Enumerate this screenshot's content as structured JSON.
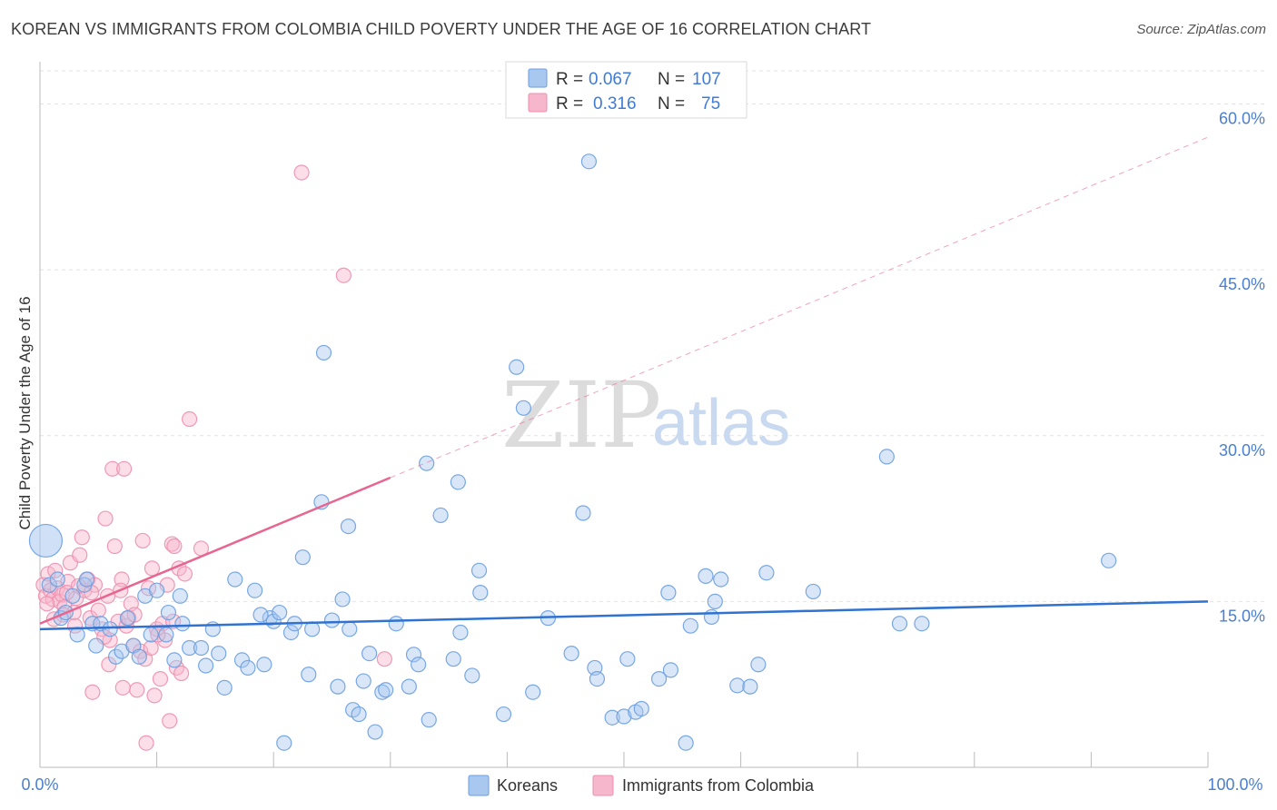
{
  "title": "KOREAN VS IMMIGRANTS FROM COLOMBIA CHILD POVERTY UNDER THE AGE OF 16 CORRELATION CHART",
  "source": "Source: ZipAtlas.com",
  "watermark": {
    "zip": "ZIP",
    "atlas": "atlas"
  },
  "colors": {
    "blue_fill": "#a9c8f0",
    "blue_stroke": "#6a9ee0",
    "blue_line": "#2f72d0",
    "pink_fill": "#f6b6cb",
    "pink_stroke": "#ee8fae",
    "pink_line": "#e8658f",
    "tick": "#4a7fd0",
    "grid": "#e2e2e2"
  },
  "legend": {
    "r_label": "R =",
    "n_label": "N =",
    "rows": [
      {
        "r": "0.067",
        "n": "107"
      },
      {
        "r": "0.316",
        "n": "75"
      }
    ]
  },
  "chart_data": {
    "type": "scatter",
    "xlabel": "",
    "ylabel": "Child Poverty Under the Age of 16",
    "xlim": [
      0,
      100
    ],
    "ylim": [
      0,
      63
    ],
    "x_tick_labels": [
      "0.0%",
      "100.0%"
    ],
    "y_ticks": [
      15,
      30,
      45,
      60
    ],
    "y_tick_labels": [
      "15.0%",
      "30.0%",
      "45.0%",
      "60.0%"
    ],
    "legend_position": "top-center",
    "series": [
      {
        "name": "Koreans",
        "r": 0.067,
        "n": 107,
        "trend": {
          "x": [
            0,
            100
          ],
          "y": [
            12.5,
            15.0
          ],
          "style": "solid"
        },
        "points": [
          {
            "x": 0.5,
            "y": 20.5,
            "big": true
          },
          {
            "x": 0.8,
            "y": 16.5
          },
          {
            "x": 1.5,
            "y": 17
          },
          {
            "x": 1.8,
            "y": 13.5
          },
          {
            "x": 2.2,
            "y": 14
          },
          {
            "x": 3.2,
            "y": 12
          },
          {
            "x": 3.8,
            "y": 16.5
          },
          {
            "x": 4.5,
            "y": 13
          },
          {
            "x": 4.8,
            "y": 11
          },
          {
            "x": 5.2,
            "y": 13
          },
          {
            "x": 6,
            "y": 12.5
          },
          {
            "x": 6.5,
            "y": 10
          },
          {
            "x": 7,
            "y": 10.5
          },
          {
            "x": 7.5,
            "y": 13.5
          },
          {
            "x": 8,
            "y": 11
          },
          {
            "x": 9,
            "y": 15.5
          },
          {
            "x": 9.5,
            "y": 12
          },
          {
            "x": 10,
            "y": 16
          },
          {
            "x": 10.8,
            "y": 12
          },
          {
            "x": 11.5,
            "y": 9.7
          },
          {
            "x": 12,
            "y": 15.5
          },
          {
            "x": 12.2,
            "y": 13
          },
          {
            "x": 12.8,
            "y": 10.8
          },
          {
            "x": 13.8,
            "y": 10.8
          },
          {
            "x": 14.2,
            "y": 9.2
          },
          {
            "x": 14.8,
            "y": 12.5
          },
          {
            "x": 15.3,
            "y": 10.3
          },
          {
            "x": 15.8,
            "y": 7.2
          },
          {
            "x": 16.7,
            "y": 17
          },
          {
            "x": 17.3,
            "y": 9.7
          },
          {
            "x": 17.8,
            "y": 9
          },
          {
            "x": 18.4,
            "y": 16
          },
          {
            "x": 19.2,
            "y": 9.3
          },
          {
            "x": 19.7,
            "y": 13.5
          },
          {
            "x": 20,
            "y": 13.2
          },
          {
            "x": 20.5,
            "y": 14
          },
          {
            "x": 20.9,
            "y": 2.2
          },
          {
            "x": 21.5,
            "y": 12.2
          },
          {
            "x": 21.8,
            "y": 13
          },
          {
            "x": 22.5,
            "y": 19
          },
          {
            "x": 23,
            "y": 8.4
          },
          {
            "x": 23.3,
            "y": 12.5
          },
          {
            "x": 24.1,
            "y": 24
          },
          {
            "x": 24.3,
            "y": 37.5
          },
          {
            "x": 25,
            "y": 13.3
          },
          {
            "x": 25.5,
            "y": 7.3
          },
          {
            "x": 25.9,
            "y": 15.2
          },
          {
            "x": 26.4,
            "y": 21.8
          },
          {
            "x": 26.8,
            "y": 5.2
          },
          {
            "x": 27.3,
            "y": 4.8
          },
          {
            "x": 27.7,
            "y": 7.8
          },
          {
            "x": 28.2,
            "y": 10.3
          },
          {
            "x": 28.7,
            "y": 3.2
          },
          {
            "x": 29.3,
            "y": 6.8
          },
          {
            "x": 29.6,
            "y": 7
          },
          {
            "x": 30.5,
            "y": 13
          },
          {
            "x": 31.6,
            "y": 7.3
          },
          {
            "x": 32,
            "y": 10.2
          },
          {
            "x": 32.4,
            "y": 9.3
          },
          {
            "x": 33.1,
            "y": 27.5
          },
          {
            "x": 33.3,
            "y": 4.3
          },
          {
            "x": 34.3,
            "y": 22.8
          },
          {
            "x": 35.4,
            "y": 9.8
          },
          {
            "x": 35.8,
            "y": 25.8
          },
          {
            "x": 36,
            "y": 12.2
          },
          {
            "x": 37,
            "y": 8.3
          },
          {
            "x": 37.6,
            "y": 17.8
          },
          {
            "x": 37.7,
            "y": 15.8
          },
          {
            "x": 39.7,
            "y": 4.8
          },
          {
            "x": 40.8,
            "y": 36.2
          },
          {
            "x": 41.4,
            "y": 32.5
          },
          {
            "x": 42.2,
            "y": 6.8
          },
          {
            "x": 43.5,
            "y": 13.5
          },
          {
            "x": 45.5,
            "y": 10.3
          },
          {
            "x": 46.5,
            "y": 23
          },
          {
            "x": 47.5,
            "y": 9
          },
          {
            "x": 47.7,
            "y": 8
          },
          {
            "x": 47,
            "y": 54.8
          },
          {
            "x": 49,
            "y": 4.5
          },
          {
            "x": 50,
            "y": 4.6
          },
          {
            "x": 50.3,
            "y": 9.8
          },
          {
            "x": 51,
            "y": 5
          },
          {
            "x": 51.5,
            "y": 5.3
          },
          {
            "x": 53,
            "y": 8
          },
          {
            "x": 53.8,
            "y": 15.8
          },
          {
            "x": 54,
            "y": 8.8
          },
          {
            "x": 55.3,
            "y": 2.2
          },
          {
            "x": 55.7,
            "y": 12.8
          },
          {
            "x": 57,
            "y": 17.3
          },
          {
            "x": 57.5,
            "y": 13.6
          },
          {
            "x": 57.8,
            "y": 15
          },
          {
            "x": 58.3,
            "y": 17
          },
          {
            "x": 59.7,
            "y": 7.4
          },
          {
            "x": 60.8,
            "y": 7.3
          },
          {
            "x": 61.5,
            "y": 9.3
          },
          {
            "x": 62.2,
            "y": 17.6
          },
          {
            "x": 66.2,
            "y": 15.9
          },
          {
            "x": 72.5,
            "y": 28.1
          },
          {
            "x": 73.6,
            "y": 13
          },
          {
            "x": 75.5,
            "y": 13
          },
          {
            "x": 91.5,
            "y": 18.7
          },
          {
            "x": 2.8,
            "y": 15.5
          },
          {
            "x": 4,
            "y": 17
          },
          {
            "x": 8.5,
            "y": 10
          },
          {
            "x": 11,
            "y": 14
          },
          {
            "x": 18.9,
            "y": 13.8
          },
          {
            "x": 26.5,
            "y": 12.5
          }
        ]
      },
      {
        "name": "Immigrants from Colombia",
        "r": 0.316,
        "n": 75,
        "trend": {
          "x": [
            0,
            30
          ],
          "y": [
            13.0,
            26.2
          ],
          "style": "solid",
          "dashed_extension": {
            "x": [
              30,
              100
            ],
            "y": [
              26.2,
              57.0
            ]
          }
        },
        "points": [
          {
            "x": 0.3,
            "y": 16.5
          },
          {
            "x": 0.5,
            "y": 15.5
          },
          {
            "x": 0.7,
            "y": 17.5
          },
          {
            "x": 0.9,
            "y": 16
          },
          {
            "x": 1.1,
            "y": 15.2
          },
          {
            "x": 1.3,
            "y": 17.8
          },
          {
            "x": 1.5,
            "y": 16.2
          },
          {
            "x": 1.7,
            "y": 15
          },
          {
            "x": 1.9,
            "y": 15.6
          },
          {
            "x": 2.1,
            "y": 14.5
          },
          {
            "x": 2.4,
            "y": 16.8
          },
          {
            "x": 2.6,
            "y": 18.5
          },
          {
            "x": 2.9,
            "y": 14
          },
          {
            "x": 3.1,
            "y": 15.3
          },
          {
            "x": 3.4,
            "y": 19.2
          },
          {
            "x": 3.6,
            "y": 20.8
          },
          {
            "x": 3.8,
            "y": 16
          },
          {
            "x": 4.1,
            "y": 17
          },
          {
            "x": 4.3,
            "y": 13.5
          },
          {
            "x": 4.5,
            "y": 6.8
          },
          {
            "x": 4.7,
            "y": 16.5
          },
          {
            "x": 5,
            "y": 14.2
          },
          {
            "x": 5.3,
            "y": 12.5
          },
          {
            "x": 5.6,
            "y": 22.5
          },
          {
            "x": 5.8,
            "y": 15.5
          },
          {
            "x": 6,
            "y": 11.5
          },
          {
            "x": 6.2,
            "y": 27
          },
          {
            "x": 6.4,
            "y": 20
          },
          {
            "x": 6.7,
            "y": 13.2
          },
          {
            "x": 7,
            "y": 17
          },
          {
            "x": 7.2,
            "y": 27
          },
          {
            "x": 7.4,
            "y": 12.8
          },
          {
            "x": 7.6,
            "y": 13.5
          },
          {
            "x": 7.8,
            "y": 14.8
          },
          {
            "x": 8,
            "y": 11
          },
          {
            "x": 8.3,
            "y": 7
          },
          {
            "x": 8.6,
            "y": 10.5
          },
          {
            "x": 8.8,
            "y": 20.5
          },
          {
            "x": 9,
            "y": 9.8
          },
          {
            "x": 9.1,
            "y": 2.2
          },
          {
            "x": 9.3,
            "y": 16.2
          },
          {
            "x": 9.6,
            "y": 18
          },
          {
            "x": 9.8,
            "y": 6.5
          },
          {
            "x": 10,
            "y": 12.5
          },
          {
            "x": 10.3,
            "y": 8
          },
          {
            "x": 10.5,
            "y": 13
          },
          {
            "x": 10.7,
            "y": 11.5
          },
          {
            "x": 10.9,
            "y": 16.5
          },
          {
            "x": 11.1,
            "y": 4.2
          },
          {
            "x": 11.3,
            "y": 20.2
          },
          {
            "x": 11.5,
            "y": 20
          },
          {
            "x": 11.7,
            "y": 9
          },
          {
            "x": 11.9,
            "y": 18
          },
          {
            "x": 12.1,
            "y": 8.5
          },
          {
            "x": 12.8,
            "y": 31.5
          },
          {
            "x": 13.8,
            "y": 19.8
          },
          {
            "x": 22.4,
            "y": 53.8
          },
          {
            "x": 26,
            "y": 44.5
          },
          {
            "x": 29.5,
            "y": 9.8
          },
          {
            "x": 2,
            "y": 13.8
          },
          {
            "x": 3,
            "y": 12.8
          },
          {
            "x": 5.5,
            "y": 11.8
          },
          {
            "x": 6.9,
            "y": 16
          },
          {
            "x": 8.1,
            "y": 13.8
          },
          {
            "x": 9.5,
            "y": 10.8
          },
          {
            "x": 0.6,
            "y": 14.8
          },
          {
            "x": 1.2,
            "y": 13.4
          },
          {
            "x": 4.4,
            "y": 15.8
          },
          {
            "x": 5.9,
            "y": 9.3
          },
          {
            "x": 7.1,
            "y": 7.2
          },
          {
            "x": 10.1,
            "y": 12
          },
          {
            "x": 11.4,
            "y": 13.2
          },
          {
            "x": 12.4,
            "y": 17.5
          },
          {
            "x": 2.3,
            "y": 15.8
          },
          {
            "x": 3.3,
            "y": 16.4
          }
        ]
      }
    ]
  }
}
